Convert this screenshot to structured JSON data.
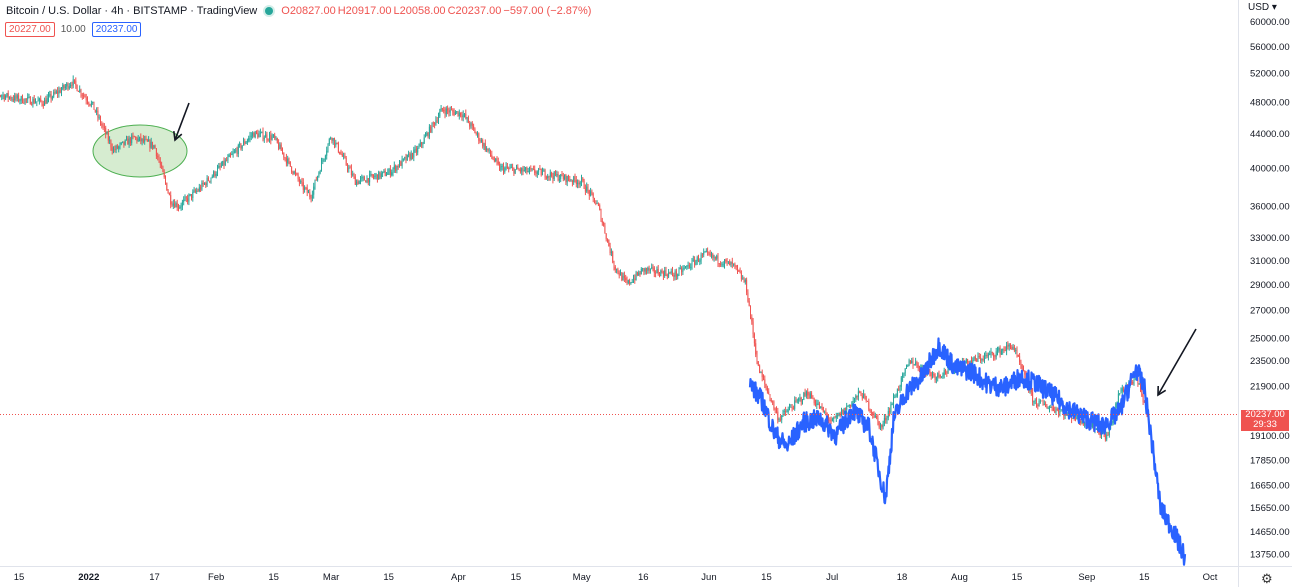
{
  "header": {
    "title": "Bitcoin / U.S. Dollar · 4h · BITSTAMP · TradingView",
    "ohlc": {
      "o_label": "O",
      "o": "20827.00",
      "h_label": "H",
      "h": "20917.00",
      "l_label": "L",
      "l": "20058.00",
      "c_label": "C",
      "c": "20237.00",
      "change": "−597.00 (−2.87%)"
    },
    "bid": "20227.00",
    "spread": "10.00",
    "ask": "20237.00"
  },
  "price_axis": {
    "currency": "USD",
    "current_price": "20237.00",
    "countdown": "29:33"
  },
  "colors": {
    "up": "#26a69a",
    "down": "#ef5350",
    "overlay": "#2962ff",
    "ellipse_fill": "#c8e6c0",
    "ellipse_stroke": "#4caf50"
  },
  "chart_data": {
    "type": "line",
    "title": "Bitcoin / U.S. Dollar · 4h · BITSTAMP · TradingView",
    "scale": "log",
    "y_ticks": [
      60000,
      56000,
      52000,
      48000,
      44000,
      40000,
      36000,
      33000,
      31000,
      29000,
      27000,
      25000,
      23500,
      21900,
      19100,
      17850,
      16650,
      15650,
      14650,
      13750
    ],
    "y_tick_labels": [
      "60000.00",
      "56000.00",
      "52000.00",
      "48000.00",
      "44000.00",
      "40000.00",
      "36000.00",
      "33000.00",
      "31000.00",
      "29000.00",
      "27000.00",
      "25000.00",
      "23500.00",
      "21900.00",
      "19100.00",
      "17850.00",
      "16650.00",
      "15650.00",
      "14650.00",
      "13750.00"
    ],
    "x_tick_labels": [
      "15",
      "2022",
      "17",
      "Feb",
      "15",
      "Mar",
      "15",
      "Apr",
      "15",
      "May",
      "16",
      "Jun",
      "15",
      "Jul",
      "18",
      "Aug",
      "15",
      "Sep",
      "15",
      "Oct"
    ],
    "x_tick_dates": [
      "2021-12-15",
      "2022-01-01",
      "2022-01-17",
      "2022-02-01",
      "2022-02-15",
      "2022-03-01",
      "2022-03-15",
      "2022-04-01",
      "2022-04-15",
      "2022-05-01",
      "2022-05-16",
      "2022-06-01",
      "2022-06-15",
      "2022-07-01",
      "2022-07-18",
      "2022-08-01",
      "2022-08-15",
      "2022-09-01",
      "2022-09-15",
      "2022-10-01"
    ],
    "series": [
      {
        "style": "candles",
        "color": "#26a69a",
        "x": [
          "2021-12-07",
          "2021-12-14",
          "2021-12-21",
          "2021-12-28",
          "2022-01-02",
          "2022-01-07",
          "2022-01-12",
          "2022-01-17",
          "2022-01-21",
          "2022-01-23",
          "2022-01-28",
          "2022-02-05",
          "2022-02-10",
          "2022-02-15",
          "2022-02-22",
          "2022-02-24",
          "2022-03-01",
          "2022-03-07",
          "2022-03-15",
          "2022-03-22",
          "2022-03-28",
          "2022-04-02",
          "2022-04-11",
          "2022-04-21",
          "2022-05-01",
          "2022-05-05",
          "2022-05-09",
          "2022-05-12",
          "2022-05-16",
          "2022-05-24",
          "2022-05-31",
          "2022-06-07",
          "2022-06-10",
          "2022-06-13",
          "2022-06-18",
          "2022-06-25",
          "2022-07-01",
          "2022-07-08",
          "2022-07-13",
          "2022-07-20",
          "2022-07-26",
          "2022-08-01",
          "2022-08-08",
          "2022-08-14",
          "2022-08-19",
          "2022-08-26",
          "2022-09-01",
          "2022-09-06",
          "2022-09-09",
          "2022-09-13",
          "2022-09-16"
        ],
        "y": [
          49500,
          48500,
          48000,
          50800,
          47500,
          42000,
          43500,
          42500,
          36500,
          36000,
          37800,
          41500,
          44000,
          43500,
          38000,
          37000,
          43800,
          38500,
          39500,
          42000,
          47000,
          46500,
          40000,
          39500,
          38500,
          36000,
          30500,
          29000,
          30200,
          29800,
          31500,
          30500,
          29000,
          23000,
          20000,
          21500,
          19800,
          21500,
          19500,
          23500,
          22500,
          23200,
          23800,
          24500,
          21000,
          20400,
          19800,
          19000,
          21500,
          22400,
          20237
        ]
      },
      {
        "style": "line",
        "color": "#2962ff",
        "x": [
          "2022-06-11",
          "2022-06-14",
          "2022-06-17",
          "2022-06-20",
          "2022-06-24",
          "2022-06-28",
          "2022-07-02",
          "2022-07-06",
          "2022-07-10",
          "2022-07-14",
          "2022-07-16",
          "2022-07-19",
          "2022-07-23",
          "2022-07-27",
          "2022-07-31",
          "2022-08-04",
          "2022-08-08",
          "2022-08-12",
          "2022-08-16",
          "2022-08-20",
          "2022-08-24",
          "2022-08-28",
          "2022-09-01",
          "2022-09-05",
          "2022-09-09",
          "2022-09-13",
          "2022-09-15",
          "2022-09-17",
          "2022-09-19",
          "2022-09-22",
          "2022-09-25"
        ],
        "y": [
          22000,
          21000,
          19200,
          18500,
          19800,
          20000,
          19100,
          20500,
          19500,
          16000,
          20000,
          21500,
          22500,
          24500,
          23000,
          22800,
          22000,
          21800,
          22500,
          22000,
          21300,
          20500,
          20000,
          19600,
          20400,
          23000,
          21800,
          18500,
          15600,
          14700,
          13600
        ]
      }
    ],
    "annotations": [
      "ellipse around Jan 2022 consolidation",
      "arrow pointing to Jan 2022 breakdown",
      "arrow pointing to Sep 2022 breakdown"
    ],
    "grid": false,
    "legend": "top-left"
  }
}
